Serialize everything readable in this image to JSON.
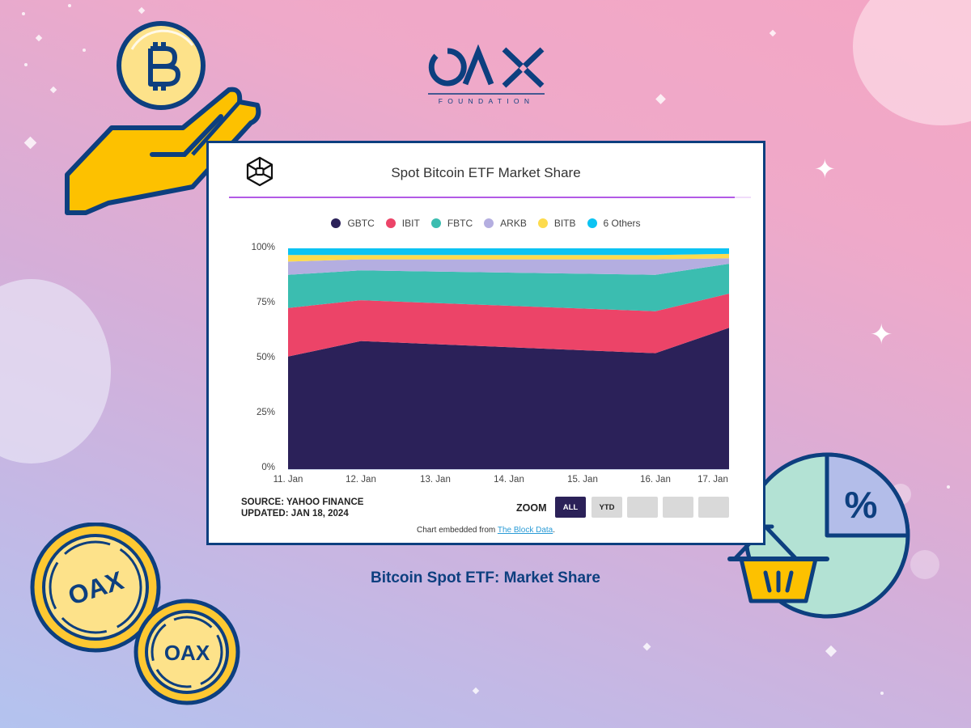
{
  "brand": {
    "logo_text": "OAX",
    "logo_subtext": "FOUNDATION",
    "primary_color": "#0d3f7f"
  },
  "card": {
    "title": "Spot Bitcoin ETF Market Share",
    "source_line": "SOURCE: YAHOO FINANCE",
    "updated_line": "UPDATED: JAN 18, 2024",
    "zoom_label": "ZOOM",
    "zoom_buttons": [
      "ALL",
      "YTD",
      "",
      "",
      ""
    ],
    "zoom_active": "ALL",
    "embed_prefix": "Chart embedded from ",
    "embed_link": "The Block Data",
    "embed_suffix": "."
  },
  "caption": "Bitcoin Spot ETF: Market Share",
  "icons": {
    "top_left": "hand-holding-bitcoin-icon",
    "bottom_left": "oax-coins-icon",
    "bottom_right": "pie-chart-percent-basket-icon",
    "card_logo": "the-block-cube-icon"
  },
  "chart_data": {
    "type": "area",
    "stacked": "percent",
    "title": "Spot Bitcoin ETF Market Share",
    "xlabel": "",
    "ylabel": "",
    "x_tick_labels": [
      "11. Jan",
      "12. Jan",
      "13. Jan",
      "14. Jan",
      "15. Jan",
      "16. Jan",
      "17. Jan"
    ],
    "categories": [
      "11. Jan",
      "12. Jan",
      "16. Jan",
      "17. Jan"
    ],
    "y_tick_labels": [
      "0%",
      "25%",
      "50%",
      "75%",
      "100%"
    ],
    "ylim": [
      0,
      100
    ],
    "grid": false,
    "legend_position": "top",
    "series": [
      {
        "name": "GBTC",
        "color": "#2b2159",
        "values": [
          51,
          58,
          52.5,
          64
        ]
      },
      {
        "name": "IBIT",
        "color": "#ec4468",
        "values": [
          22,
          18.5,
          19,
          15.5
        ]
      },
      {
        "name": "FBTC",
        "color": "#3bbdb0",
        "values": [
          15,
          13.5,
          16.5,
          13.5
        ]
      },
      {
        "name": "ARKB",
        "color": "#b4aee0",
        "values": [
          6,
          5,
          7,
          2.5
        ]
      },
      {
        "name": "BITB",
        "color": "#fddb4d",
        "values": [
          3,
          2,
          2,
          2
        ]
      },
      {
        "name": "6 Others",
        "color": "#0cc3f2",
        "values": [
          3,
          3,
          3,
          2.5
        ]
      }
    ]
  }
}
